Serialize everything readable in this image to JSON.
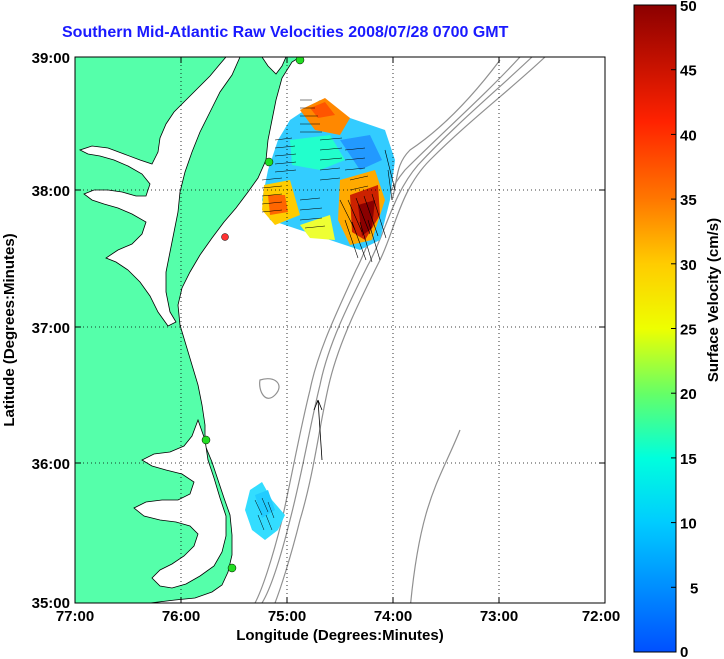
{
  "title": "Southern Mid-Atlantic Raw Velocities 2008/07/28 0700 GMT",
  "axes": {
    "xlabel": "Longitude (Degrees:Minutes)",
    "ylabel": "Latitude (Degrees:Minutes)",
    "x_ticks": [
      "77:00",
      "76:00",
      "75:00",
      "74:00",
      "73:00",
      "72:00"
    ],
    "y_ticks": [
      "39:00",
      "38:00",
      "37:00",
      "36:00",
      "35:00"
    ]
  },
  "colorbar": {
    "label": "Surface Velocity (cm/s)",
    "ticks": [
      "50",
      "45",
      "40",
      "35",
      "30",
      "25",
      "20",
      "15",
      "10",
      "5",
      "0"
    ],
    "min": 0,
    "max": 50
  },
  "colors": {
    "land": "#55ffaa",
    "title": "#1a1aff",
    "bathymetry": "#909090",
    "station": "#22dd22",
    "station_alt": "#ff3333"
  }
}
